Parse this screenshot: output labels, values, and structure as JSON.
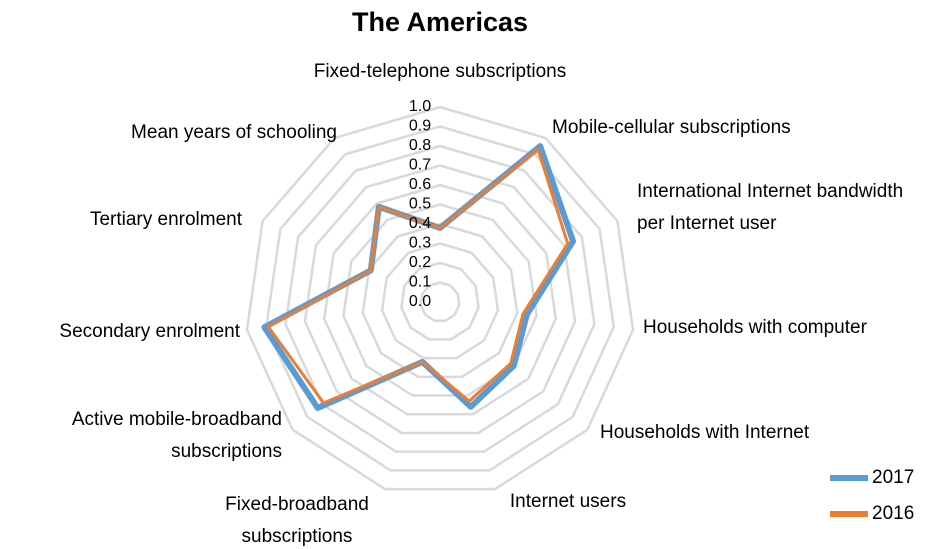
{
  "chart_data": {
    "type": "radar",
    "title": "The Americas",
    "categories": [
      "Fixed-telephone subscriptions",
      "Mobile-cellular subscriptions",
      "International Internet bandwidth per Internet user",
      "Households with computer",
      "Households with Internet",
      "Internet users",
      "Fixed-broadband subscriptions",
      "Active mobile-broadband subscriptions",
      "Secondary enrolment",
      "Tertiary enrolment",
      "Mean years of schooling"
    ],
    "series": [
      {
        "name": "2017",
        "color": "#5b9bd5",
        "values": [
          0.38,
          0.95,
          0.75,
          0.45,
          0.5,
          0.56,
          0.32,
          0.83,
          0.91,
          0.39,
          0.58
        ]
      },
      {
        "name": "2016",
        "color": "#ed7d31",
        "values": [
          0.38,
          0.93,
          0.72,
          0.43,
          0.48,
          0.53,
          0.32,
          0.79,
          0.89,
          0.39,
          0.58
        ]
      }
    ],
    "ylim": [
      0,
      1
    ],
    "yticks": [
      {
        "value": 0,
        "label": "0.0"
      },
      {
        "value": 0.1,
        "label": "0.1"
      },
      {
        "value": 0.2,
        "label": "0.2"
      },
      {
        "value": 0.3,
        "label": "0.3"
      },
      {
        "value": 0.4,
        "label": "0.4"
      },
      {
        "value": 0.5,
        "label": "0.5"
      },
      {
        "value": 0.6,
        "label": "0.6"
      },
      {
        "value": 0.7,
        "label": "0.7"
      },
      {
        "value": 0.8,
        "label": "0.8"
      },
      {
        "value": 0.9,
        "label": "0.9"
      },
      {
        "value": 1,
        "label": "1.0"
      }
    ],
    "grid": true,
    "legend": "bottom-right"
  }
}
